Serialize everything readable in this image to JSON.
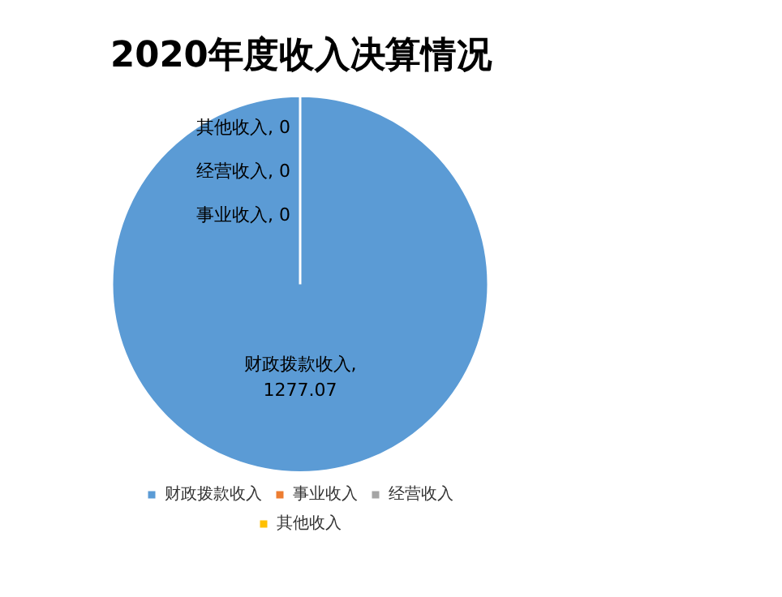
{
  "chart_data": {
    "type": "pie",
    "title": "2020年度收入决算情况",
    "categories": [
      "财政拨款收入",
      "事业收入",
      "经营收入",
      "其他收入"
    ],
    "values": [
      1277.07,
      0,
      0,
      0
    ],
    "colors": [
      "#5b9bd5",
      "#ed7d31",
      "#a5a5a5",
      "#ffc000"
    ],
    "value_labels": [
      "财政拨款收入, 1277.07",
      "事业收入, 0",
      "经营收入, 0",
      "其他收入, 0"
    ],
    "legend": "bottom"
  }
}
